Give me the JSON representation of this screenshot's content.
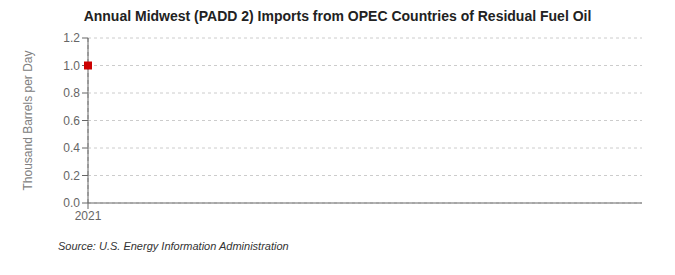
{
  "chart_data": {
    "type": "scatter",
    "title": "Annual Midwest (PADD 2) Imports from OPEC Countries of Residual Fuel Oil",
    "y_label": "Thousand Barrels per Day",
    "source": "Source: U.S. Energy Information Administration",
    "x": [
      2021
    ],
    "values": [
      1.0
    ],
    "color": "#cc0000",
    "marker": "square",
    "xlim": [
      2021,
      2028
    ],
    "xticks": [
      2021
    ],
    "ylim": [
      0,
      1.2
    ],
    "yticks": [
      {
        "value": 0,
        "label": "0.0"
      },
      0.2,
      0.4,
      0.6,
      0.8,
      {
        "value": 1,
        "label": "1.0"
      },
      1.2
    ],
    "grid": "y",
    "reference_x": [
      2021
    ]
  }
}
